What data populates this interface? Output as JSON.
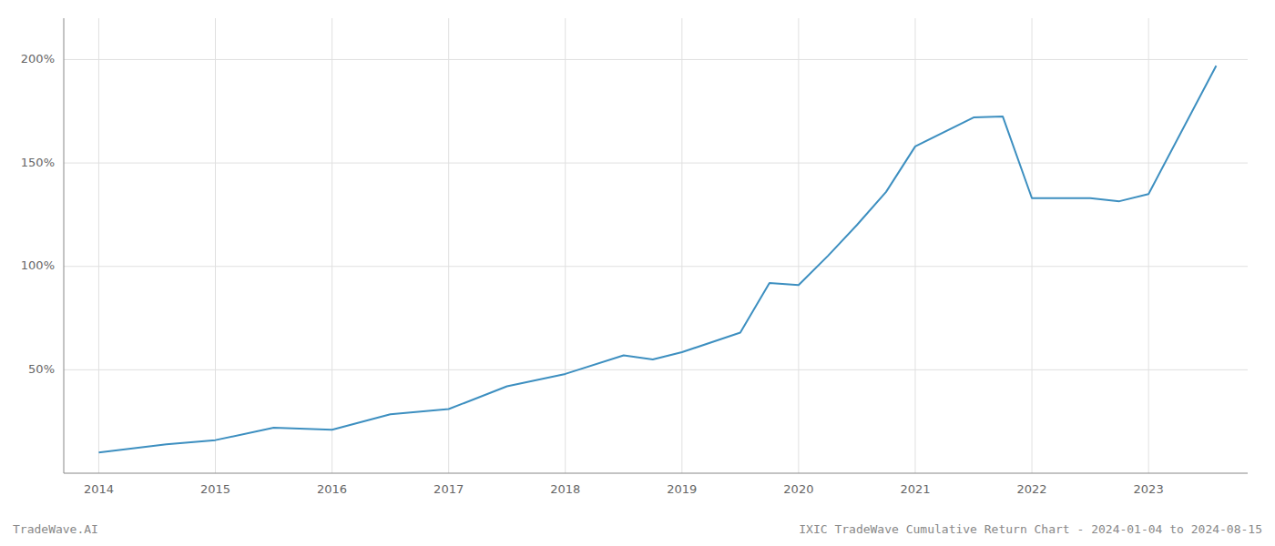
{
  "chart_data": {
    "type": "line",
    "x": [
      2014.0,
      2014.58,
      2015.0,
      2015.5,
      2016.0,
      2016.5,
      2017.0,
      2017.5,
      2018.0,
      2018.5,
      2018.75,
      2019.0,
      2019.5,
      2019.75,
      2020.0,
      2020.25,
      2020.5,
      2020.75,
      2021.0,
      2021.5,
      2021.75,
      2022.0,
      2022.5,
      2022.75,
      2023.0,
      2023.58
    ],
    "values": [
      10.0,
      14.0,
      16.0,
      22.0,
      21.0,
      28.5,
      31.0,
      42.0,
      48.0,
      57.0,
      55.0,
      58.5,
      68.0,
      92.0,
      91.0,
      105.0,
      120.0,
      136.0,
      158.0,
      172.0,
      172.5,
      133.0,
      133.0,
      131.5,
      135.0,
      197.0
    ],
    "color": "#3d8fc0",
    "xlim": [
      2013.7,
      2023.85
    ],
    "xticks": [
      2014,
      2015,
      2016,
      2017,
      2018,
      2019,
      2020,
      2021,
      2022,
      2023
    ],
    "ylim": [
      0,
      220
    ],
    "yticks": [
      {
        "value": 50,
        "label": "50%"
      },
      {
        "value": 100,
        "label": "100%"
      },
      {
        "value": 150,
        "label": "150%"
      },
      {
        "value": 200,
        "label": "200%"
      }
    ],
    "grid": true,
    "annotations": [
      "TradeWave.AI",
      "IXIC TradeWave Cumulative Return Chart - 2024-01-04 to 2024-08-15"
    ]
  }
}
